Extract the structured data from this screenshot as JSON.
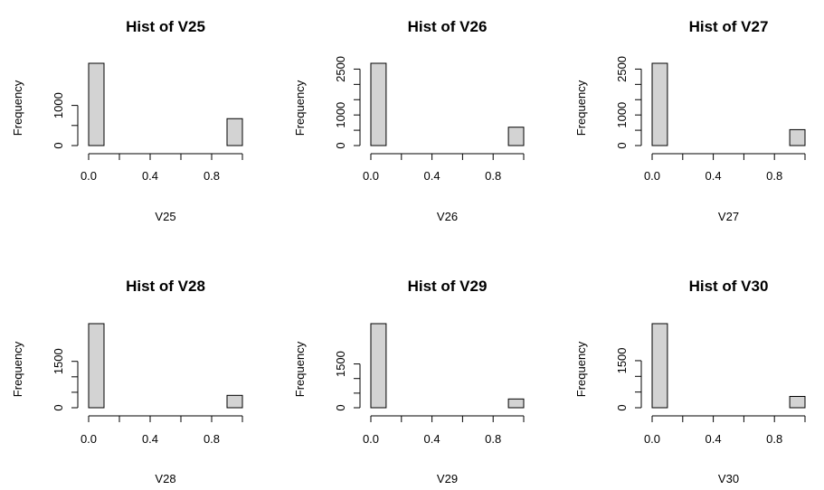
{
  "colors": {
    "bar_fill": "#d3d3d3",
    "bar_stroke": "#000000",
    "axis": "#000000",
    "background": "#ffffff"
  },
  "chart_data": [
    {
      "type": "bar",
      "title": "Hist of V25",
      "xlabel": "V25",
      "ylabel": "Frequency",
      "bins": [
        [
          0,
          0.1
        ],
        [
          0.9,
          1.0
        ]
      ],
      "values": [
        2050,
        670
      ],
      "x_ticks": [
        "0.0",
        "0.4",
        "0.8"
      ],
      "x_tick_values": [
        0,
        0.2,
        0.4,
        0.6,
        0.8,
        1.0
      ],
      "y_ticks": [
        0,
        1000
      ],
      "ylim": [
        0,
        2050
      ],
      "grid": false
    },
    {
      "type": "bar",
      "title": "Hist of V26",
      "xlabel": "V26",
      "ylabel": "Frequency",
      "bins": [
        [
          0,
          0.1
        ],
        [
          0.9,
          1.0
        ]
      ],
      "values": [
        2690,
        600
      ],
      "x_ticks": [
        "0.0",
        "0.4",
        "0.8"
      ],
      "x_tick_values": [
        0,
        0.2,
        0.4,
        0.6,
        0.8,
        1.0
      ],
      "y_ticks": [
        0,
        1000,
        2500
      ],
      "ylim": [
        0,
        2690
      ],
      "grid": false
    },
    {
      "type": "bar",
      "title": "Hist of V27",
      "xlabel": "V27",
      "ylabel": "Frequency",
      "bins": [
        [
          0,
          0.1
        ],
        [
          0.9,
          1.0
        ]
      ],
      "values": [
        2690,
        520
      ],
      "x_ticks": [
        "0.0",
        "0.4",
        "0.8"
      ],
      "x_tick_values": [
        0,
        0.2,
        0.4,
        0.6,
        0.8,
        1.0
      ],
      "y_ticks": [
        0,
        1000,
        2500
      ],
      "ylim": [
        0,
        2690
      ],
      "grid": false
    },
    {
      "type": "bar",
      "title": "Hist of V28",
      "xlabel": "V28",
      "ylabel": "Frequency",
      "bins": [
        [
          0,
          0.1
        ],
        [
          0.9,
          1.0
        ]
      ],
      "values": [
        2720,
        400
      ],
      "x_ticks": [
        "0.0",
        "0.4",
        "0.8"
      ],
      "x_tick_values": [
        0,
        0.2,
        0.4,
        0.6,
        0.8,
        1.0
      ],
      "y_ticks": [
        0,
        1500
      ],
      "ylim": [
        0,
        2720
      ],
      "grid": false
    },
    {
      "type": "bar",
      "title": "Hist of V29",
      "xlabel": "V29",
      "ylabel": "Frequency",
      "bins": [
        [
          0,
          0.1
        ],
        [
          0.9,
          1.0
        ]
      ],
      "values": [
        2880,
        300
      ],
      "x_ticks": [
        "0.0",
        "0.4",
        "0.8"
      ],
      "x_tick_values": [
        0,
        0.2,
        0.4,
        0.6,
        0.8,
        1.0
      ],
      "y_ticks": [
        0,
        1500
      ],
      "ylim": [
        0,
        2880
      ],
      "grid": false
    },
    {
      "type": "bar",
      "title": "Hist of V30",
      "xlabel": "V30",
      "ylabel": "Frequency",
      "bins": [
        [
          0,
          0.1
        ],
        [
          0.9,
          1.0
        ]
      ],
      "values": [
        2680,
        360
      ],
      "x_ticks": [
        "0.0",
        "0.4",
        "0.8"
      ],
      "x_tick_values": [
        0,
        0.2,
        0.4,
        0.6,
        0.8,
        1.0
      ],
      "y_ticks": [
        0,
        1500
      ],
      "ylim": [
        0,
        2680
      ],
      "grid": false
    }
  ]
}
